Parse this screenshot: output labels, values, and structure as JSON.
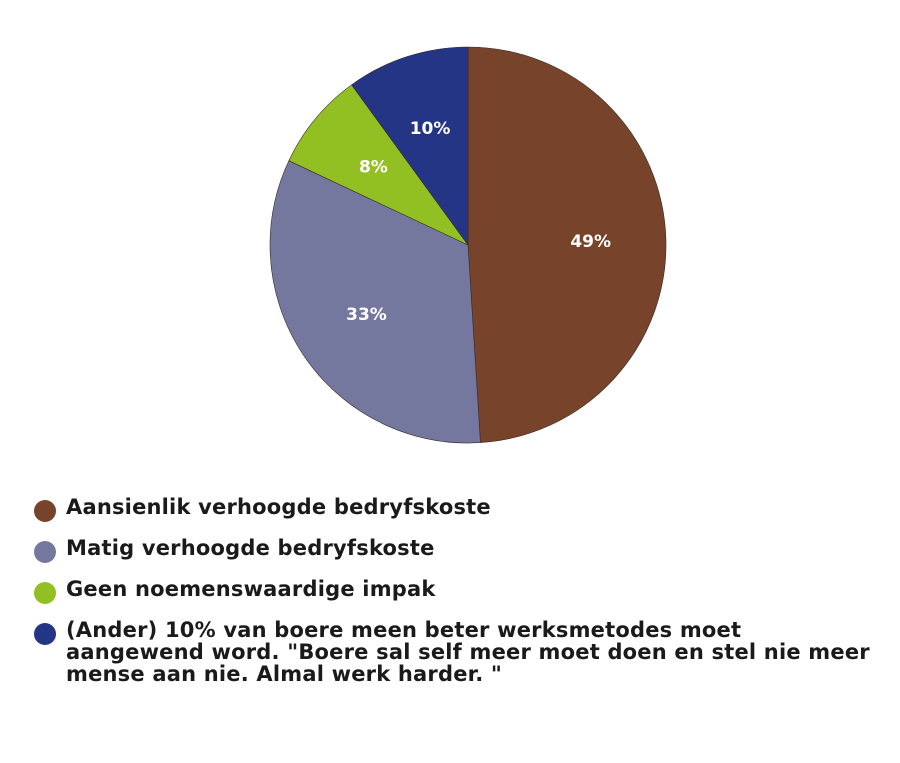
{
  "chart_data": {
    "type": "pie",
    "title": "",
    "slices": [
      {
        "label": "Aansienlik verhoogde bedryfskoste",
        "value": 49,
        "display": "49%",
        "color": "#77432b"
      },
      {
        "label": "Matig verhoogde bedryfskoste",
        "value": 33,
        "display": "33%",
        "color": "#75789e"
      },
      {
        "label": "Geen noemenswaardige impak",
        "value": 8,
        "display": "8%",
        "color": "#92bf22"
      },
      {
        "label": "(Ander) 10% van boere meen beter werksmetodes moet aangewend word. \"Boere sal self meer moet doen en stel nie meer mense aan nie. Almal werk harder. \"",
        "value": 10,
        "display": "10%",
        "color": "#243585"
      }
    ],
    "start_angle_deg": 0,
    "direction": "clockwise",
    "legend_position": "bottom-left"
  }
}
